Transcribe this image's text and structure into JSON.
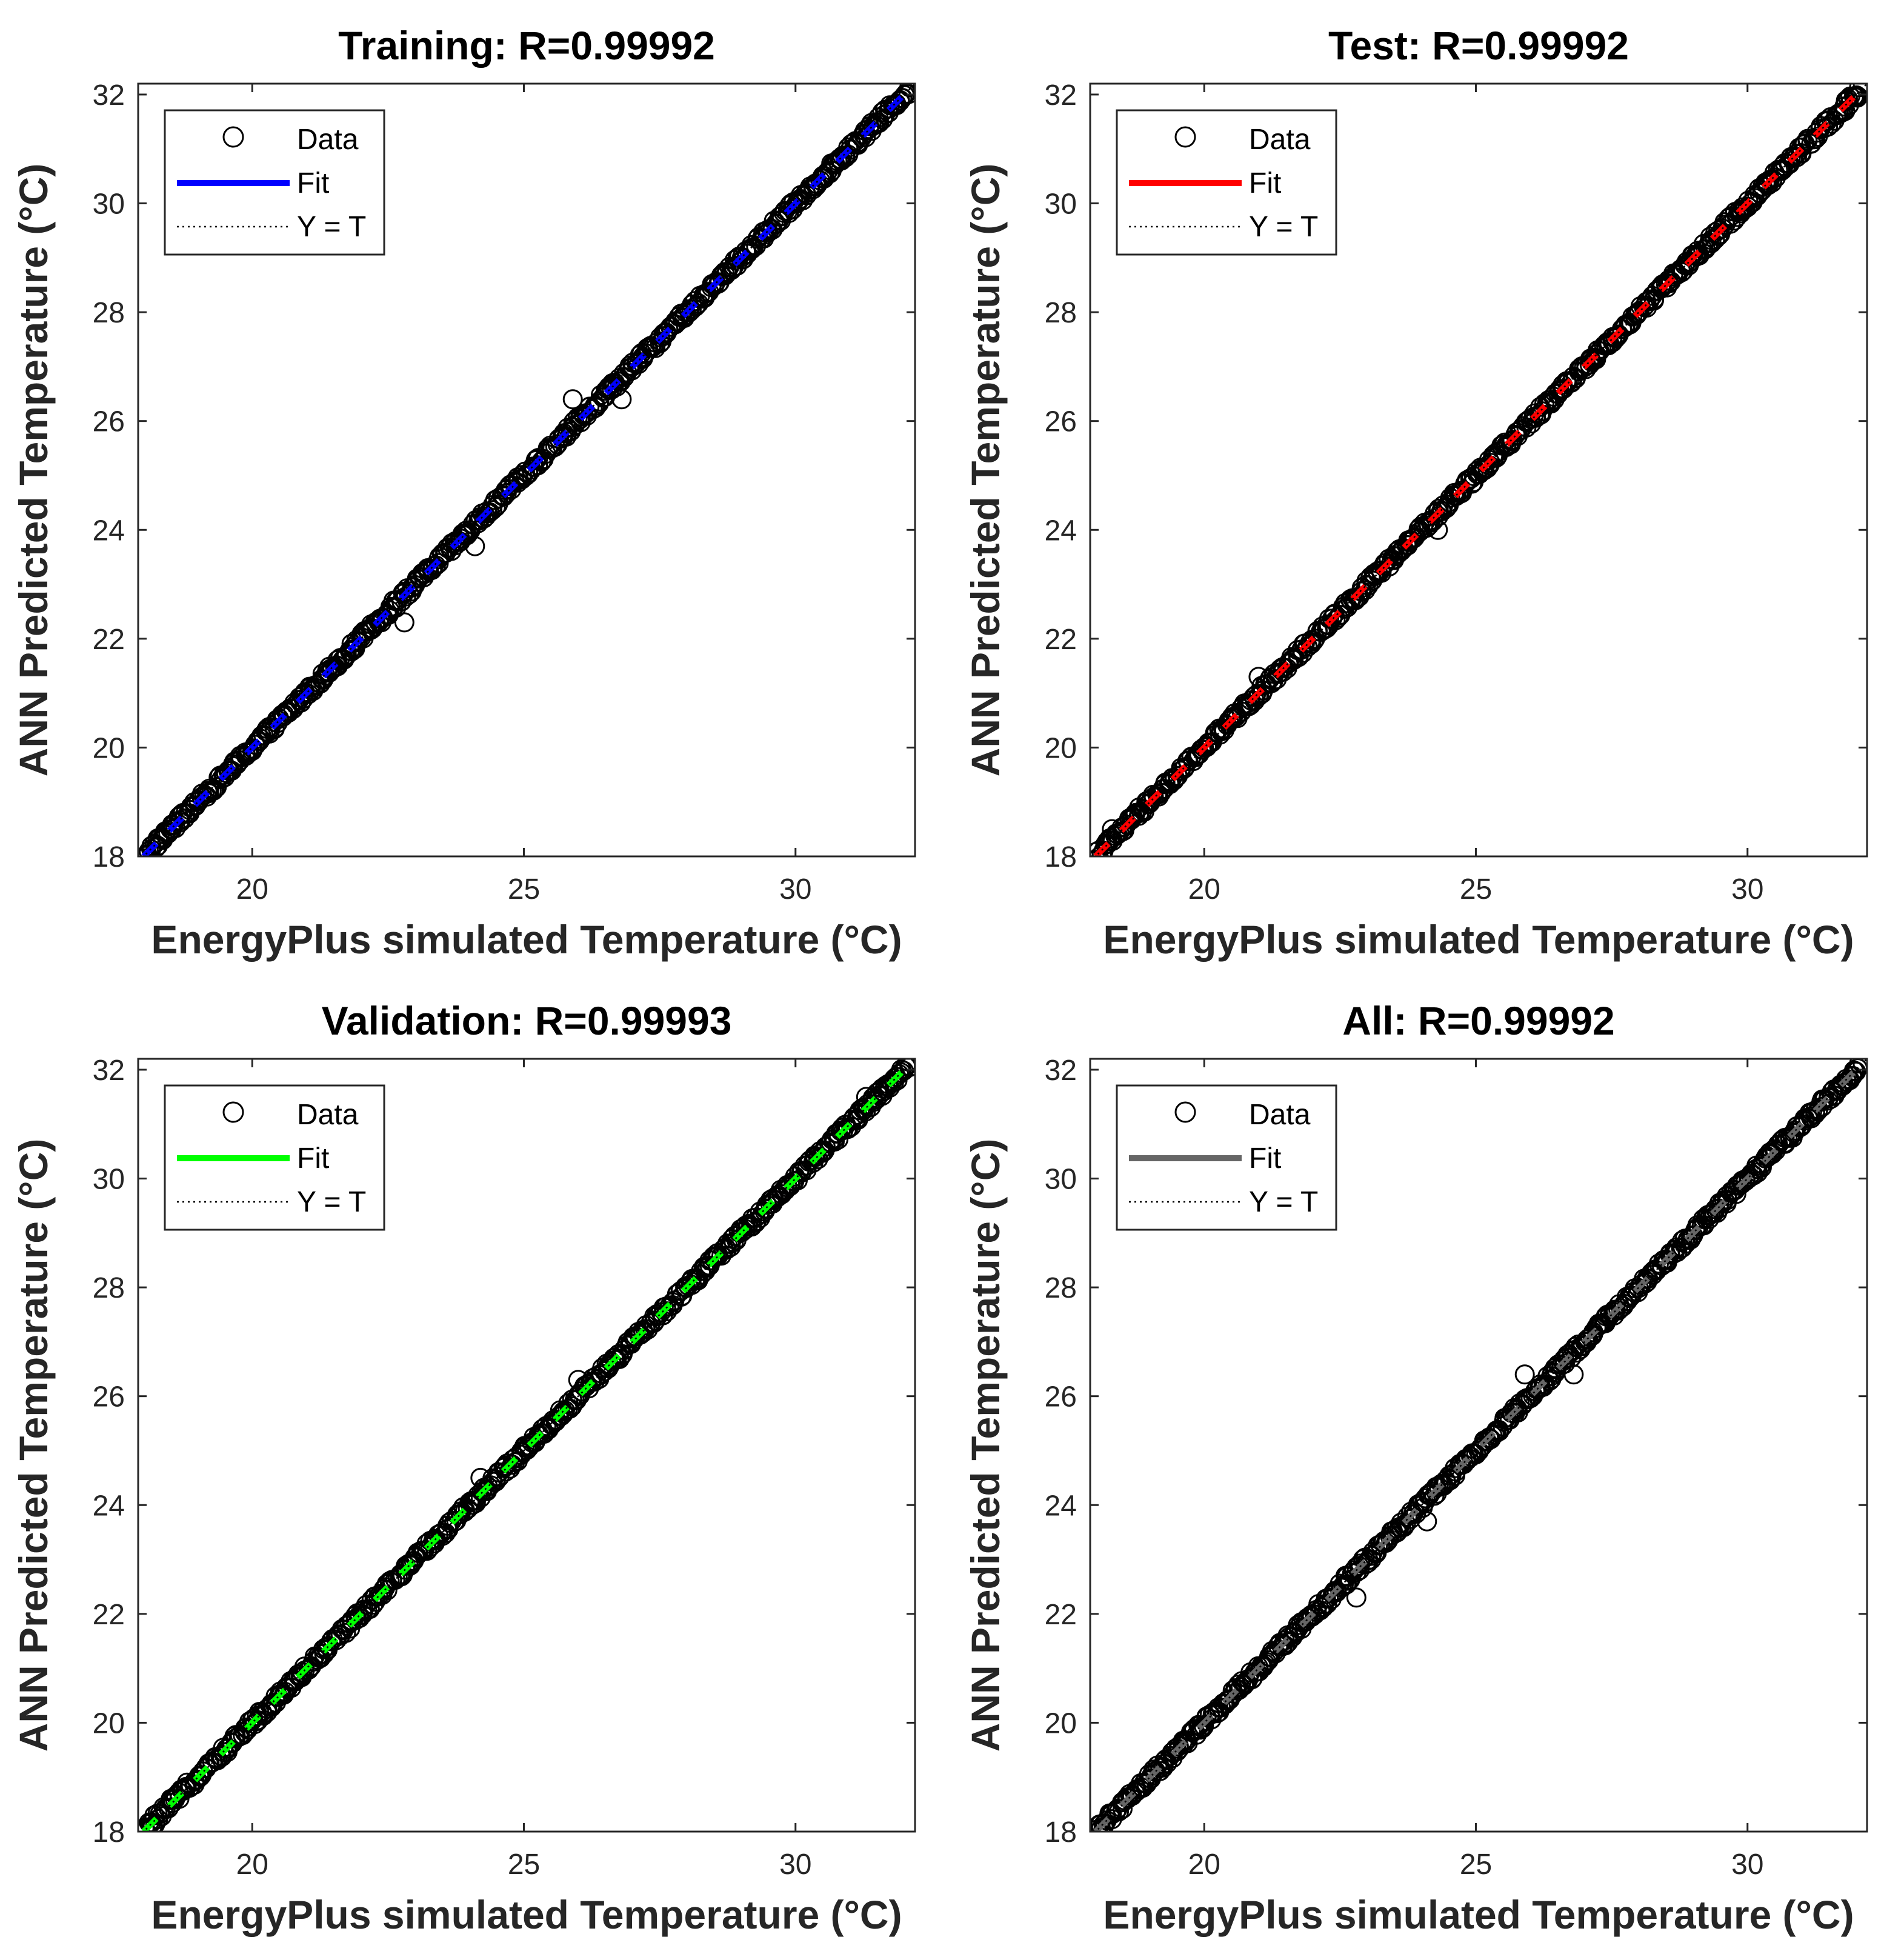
{
  "figure": {
    "tick_step_y": 2,
    "tick_step_x": 5
  },
  "chart_data": [
    {
      "type": "scatter",
      "title": "Training: R=0.99992",
      "xlabel": "EnergyPlus simulated Temperature (°C)",
      "ylabel": "ANN Predicted Temperature (°C)",
      "xlim": [
        17.9,
        32.2
      ],
      "ylim": [
        18,
        32.2
      ],
      "xticks": [
        20,
        25,
        30
      ],
      "yticks": [
        18,
        20,
        22,
        24,
        26,
        28,
        30,
        32
      ],
      "legend": [
        "Data",
        "Fit",
        "Y = T"
      ],
      "legend_position": "top-left",
      "fit_color": "#0000ff",
      "data_range": [
        18.0,
        32.1
      ],
      "fit_line": {
        "slope": 1.0,
        "intercept": 0.0
      },
      "identity_line": {
        "slope": 1,
        "intercept": 0
      },
      "outliers": [
        [
          25.9,
          26.4
        ],
        [
          22.6,
          22.7
        ],
        [
          22.8,
          22.3
        ],
        [
          24.1,
          23.7
        ],
        [
          26.8,
          26.4
        ]
      ]
    },
    {
      "type": "scatter",
      "title": "Test: R=0.99992",
      "xlabel": "EnergyPlus simulated Temperature (°C)",
      "ylabel": "ANN Predicted Temperature (°C)",
      "xlim": [
        17.9,
        32.2
      ],
      "ylim": [
        18,
        32.2
      ],
      "xticks": [
        20,
        25,
        30
      ],
      "yticks": [
        18,
        20,
        22,
        24,
        26,
        28,
        30,
        32
      ],
      "legend": [
        "Data",
        "Fit",
        "Y = T"
      ],
      "legend_position": "top-left",
      "fit_color": "#ff0000",
      "data_range": [
        18.0,
        32.1
      ],
      "fit_line": {
        "slope": 1.0,
        "intercept": 0.0
      },
      "identity_line": {
        "slope": 1,
        "intercept": 0
      },
      "outliers": [
        [
          18.3,
          18.5
        ],
        [
          18.8,
          18.9
        ],
        [
          24.3,
          24.0
        ],
        [
          31.8,
          31.7
        ],
        [
          21.0,
          21.3
        ]
      ]
    },
    {
      "type": "scatter",
      "title": "Validation: R=0.99993",
      "xlabel": "EnergyPlus simulated Temperature (°C)",
      "ylabel": "ANN Predicted Temperature (°C)",
      "xlim": [
        17.9,
        32.2
      ],
      "ylim": [
        18,
        32.2
      ],
      "xticks": [
        20,
        25,
        30
      ],
      "yticks": [
        18,
        20,
        22,
        24,
        26,
        28,
        30,
        32
      ],
      "legend": [
        "Data",
        "Fit",
        "Y = T"
      ],
      "legend_position": "top-left",
      "fit_color": "#00ff00",
      "data_range": [
        18.0,
        32.1
      ],
      "fit_line": {
        "slope": 1.0,
        "intercept": 0.0
      },
      "identity_line": {
        "slope": 1,
        "intercept": 0
      },
      "outliers": [
        [
          18.2,
          18.3
        ],
        [
          18.5,
          18.6
        ],
        [
          18.8,
          18.9
        ],
        [
          24.2,
          24.5
        ],
        [
          26.0,
          26.3
        ],
        [
          31.3,
          31.5
        ]
      ]
    },
    {
      "type": "scatter",
      "title": "All: R=0.99992",
      "xlabel": "EnergyPlus simulated Temperature (°C)",
      "ylabel": "ANN Predicted Temperature (°C)",
      "xlim": [
        17.9,
        32.2
      ],
      "ylim": [
        18,
        32.2
      ],
      "xticks": [
        20,
        25,
        30
      ],
      "yticks": [
        18,
        20,
        22,
        24,
        26,
        28,
        30,
        32
      ],
      "legend": [
        "Data",
        "Fit",
        "Y = T"
      ],
      "legend_position": "top-left",
      "fit_color": "#666666",
      "data_range": [
        18.0,
        32.1
      ],
      "fit_line": {
        "slope": 1.0,
        "intercept": 0.0
      },
      "identity_line": {
        "slope": 1,
        "intercept": 0
      },
      "outliers": [
        [
          25.9,
          26.4
        ],
        [
          22.6,
          22.7
        ],
        [
          22.8,
          22.3
        ],
        [
          24.1,
          23.7
        ],
        [
          26.8,
          26.4
        ]
      ]
    }
  ]
}
